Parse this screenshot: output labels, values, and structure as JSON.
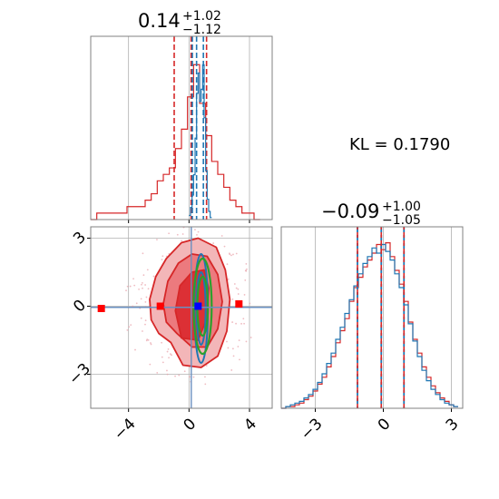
{
  "chart_data": [
    {
      "type": "histogram",
      "panel": "top-left marginal (parameter 1)",
      "title": {
        "median": "0.14",
        "plus": "+1.02",
        "minus": "−1.12"
      },
      "xlim": [
        -6.5,
        5.5
      ],
      "gridlines_x": [
        -4,
        0,
        4
      ],
      "colors": {
        "red": "#d62728",
        "blue": "#1f77b4"
      },
      "series": [
        {
          "color": "red",
          "quantiles": [
            -0.98,
            0.14,
            1.16
          ],
          "bins": [
            [
              -6.3,
              0.0
            ],
            [
              -5.9,
              0.01
            ],
            [
              -5.5,
              0.01
            ],
            [
              -5.1,
              0.01
            ],
            [
              -4.7,
              0.01
            ],
            [
              -4.3,
              0.01
            ],
            [
              -3.9,
              0.02
            ],
            [
              -3.5,
              0.02
            ],
            [
              -3.1,
              0.02
            ],
            [
              -2.7,
              0.03
            ],
            [
              -2.3,
              0.04
            ],
            [
              -1.9,
              0.06
            ],
            [
              -1.5,
              0.07
            ],
            [
              -1.1,
              0.08
            ],
            [
              -0.7,
              0.11
            ],
            [
              -0.3,
              0.14
            ],
            [
              0.1,
              0.19
            ],
            [
              0.5,
              0.24
            ],
            [
              0.9,
              0.18
            ],
            [
              1.3,
              0.13
            ],
            [
              1.7,
              0.09
            ],
            [
              2.1,
              0.07
            ],
            [
              2.5,
              0.05
            ],
            [
              2.9,
              0.03
            ],
            [
              3.3,
              0.02
            ],
            [
              3.7,
              0.01
            ],
            [
              4.1,
              0.01
            ],
            [
              4.5,
              0.0
            ]
          ]
        },
        {
          "color": "blue",
          "quantiles": [
            0.22,
            0.5,
            0.95
          ],
          "bins": [
            [
              0.05,
              0.02
            ],
            [
              0.15,
              0.06
            ],
            [
              0.25,
              0.12
            ],
            [
              0.35,
              0.22
            ],
            [
              0.45,
              0.4
            ],
            [
              0.55,
              0.62
            ],
            [
              0.65,
              0.72
            ],
            [
              0.75,
              0.58
            ],
            [
              0.85,
              0.64
            ],
            [
              0.95,
              0.76
            ],
            [
              1.05,
              0.5
            ],
            [
              1.15,
              0.24
            ],
            [
              1.25,
              0.1
            ],
            [
              1.35,
              0.04
            ],
            [
              1.45,
              0.01
            ]
          ]
        }
      ]
    },
    {
      "type": "scatter",
      "panel": "bottom-left 2D (parameter 1 vs parameter 2)",
      "xlim": [
        -6.5,
        5.5
      ],
      "ylim": [
        -4.5,
        3.5
      ],
      "x_ticks": [
        "−4",
        "0",
        "4"
      ],
      "y_ticks": [
        "−3",
        "0",
        "3"
      ],
      "x_tick_values": [
        -4,
        0,
        4
      ],
      "y_tick_values": [
        -3,
        0,
        3
      ],
      "red_contours": [
        [
          [
            -1.2,
            -1.6
          ],
          [
            -0.4,
            -2.6
          ],
          [
            0.8,
            -2.7
          ],
          [
            1.9,
            -2.2
          ],
          [
            2.5,
            -1.1
          ],
          [
            2.7,
            0.3
          ],
          [
            2.4,
            1.6
          ],
          [
            1.8,
            2.6
          ],
          [
            0.6,
            3.0
          ],
          [
            -0.5,
            2.8
          ],
          [
            -1.5,
            2.1
          ],
          [
            -2.2,
            1.3
          ],
          [
            -2.6,
            0.3
          ],
          [
            -2.5,
            -0.6
          ],
          [
            -2.0,
            -1.2
          ]
        ],
        [
          [
            -0.8,
            -1.2
          ],
          [
            0.2,
            -1.8
          ],
          [
            1.2,
            -1.8
          ],
          [
            1.9,
            -1.0
          ],
          [
            2.2,
            0.2
          ],
          [
            1.9,
            1.4
          ],
          [
            1.2,
            2.2
          ],
          [
            0.2,
            2.3
          ],
          [
            -0.7,
            1.9
          ],
          [
            -1.4,
            1.1
          ],
          [
            -1.7,
            0.1
          ],
          [
            -1.5,
            -0.7
          ]
        ],
        [
          [
            -0.5,
            -1.4
          ],
          [
            0.6,
            -1.5
          ],
          [
            1.2,
            -0.5
          ],
          [
            1.3,
            0.8
          ],
          [
            1.0,
            1.6
          ],
          [
            0.2,
            1.5
          ],
          [
            -0.6,
            0.9
          ],
          [
            -0.9,
            -0.2
          ]
        ]
      ],
      "blue_ellipses": [
        {
          "cx": 0.8,
          "cy": -0.1,
          "rx": 0.45,
          "ry": 2.4
        },
        {
          "cx": 0.8,
          "cy": -0.1,
          "rx": 0.3,
          "ry": 1.6
        }
      ],
      "green_ellipses": [
        {
          "cx": 0.9,
          "cy": 0.0,
          "rx": 0.6,
          "ry": 2.1
        },
        {
          "cx": 0.9,
          "cy": 0.0,
          "rx": 0.35,
          "ry": 1.3
        }
      ],
      "red_squares": [
        [
          -5.8,
          -0.1
        ],
        [
          -1.9,
          0.0
        ],
        [
          3.3,
          0.1
        ]
      ],
      "blue_square": [
        0.6,
        0.0
      ],
      "truth_lines": {
        "x": 0.15,
        "y": -0.05
      }
    },
    {
      "type": "histogram",
      "panel": "bottom-right marginal (parameter 2)",
      "title": {
        "median": "−0.09",
        "plus": "+1.00",
        "minus": "−1.05"
      },
      "xlim": [
        -4.5,
        3.5
      ],
      "x_ticks": [
        "−3",
        "0",
        "3"
      ],
      "x_tick_values": [
        -3,
        0,
        3
      ],
      "quantiles": [
        -1.14,
        -0.09,
        0.91
      ],
      "series": [
        {
          "color": "red",
          "bins": [
            [
              -4.4,
              0.0
            ],
            [
              -4.2,
              0.01
            ],
            [
              -4.0,
              0.01
            ],
            [
              -3.8,
              0.02
            ],
            [
              -3.6,
              0.03
            ],
            [
              -3.4,
              0.05
            ],
            [
              -3.2,
              0.07
            ],
            [
              -3.0,
              0.1
            ],
            [
              -2.8,
              0.14
            ],
            [
              -2.6,
              0.18
            ],
            [
              -2.4,
              0.24
            ],
            [
              -2.2,
              0.3
            ],
            [
              -2.0,
              0.38
            ],
            [
              -1.8,
              0.45
            ],
            [
              -1.6,
              0.52
            ],
            [
              -1.4,
              0.62
            ],
            [
              -1.2,
              0.7
            ],
            [
              -1.0,
              0.76
            ],
            [
              -0.8,
              0.82
            ],
            [
              -0.6,
              0.86
            ],
            [
              -0.4,
              0.9
            ],
            [
              -0.2,
              0.95
            ],
            [
              0.0,
              0.92
            ],
            [
              0.2,
              0.96
            ],
            [
              0.4,
              0.88
            ],
            [
              0.6,
              0.8
            ],
            [
              0.8,
              0.72
            ],
            [
              1.0,
              0.62
            ],
            [
              1.2,
              0.5
            ],
            [
              1.4,
              0.4
            ],
            [
              1.6,
              0.32
            ],
            [
              1.8,
              0.24
            ],
            [
              2.0,
              0.18
            ],
            [
              2.2,
              0.13
            ],
            [
              2.4,
              0.09
            ],
            [
              2.6,
              0.06
            ],
            [
              2.8,
              0.04
            ],
            [
              3.0,
              0.02
            ],
            [
              3.2,
              0.01
            ]
          ]
        },
        {
          "color": "blue",
          "bins": [
            [
              -4.4,
              0.0
            ],
            [
              -4.2,
              0.01
            ],
            [
              -4.0,
              0.02
            ],
            [
              -3.8,
              0.03
            ],
            [
              -3.6,
              0.04
            ],
            [
              -3.4,
              0.06
            ],
            [
              -3.2,
              0.08
            ],
            [
              -3.0,
              0.11
            ],
            [
              -2.8,
              0.15
            ],
            [
              -2.6,
              0.2
            ],
            [
              -2.4,
              0.26
            ],
            [
              -2.2,
              0.32
            ],
            [
              -2.0,
              0.4
            ],
            [
              -1.8,
              0.47
            ],
            [
              -1.6,
              0.55
            ],
            [
              -1.4,
              0.63
            ],
            [
              -1.2,
              0.71
            ],
            [
              -1.0,
              0.78
            ],
            [
              -0.8,
              0.84
            ],
            [
              -0.6,
              0.88
            ],
            [
              -0.4,
              0.93
            ],
            [
              -0.2,
              0.9
            ],
            [
              0.0,
              0.95
            ],
            [
              0.2,
              0.91
            ],
            [
              0.4,
              0.86
            ],
            [
              0.6,
              0.78
            ],
            [
              0.8,
              0.7
            ],
            [
              1.0,
              0.6
            ],
            [
              1.2,
              0.49
            ],
            [
              1.4,
              0.39
            ],
            [
              1.6,
              0.3
            ],
            [
              1.8,
              0.22
            ],
            [
              2.0,
              0.16
            ],
            [
              2.2,
              0.11
            ],
            [
              2.4,
              0.08
            ],
            [
              2.6,
              0.05
            ],
            [
              2.8,
              0.03
            ],
            [
              3.0,
              0.02
            ],
            [
              3.2,
              0.01
            ]
          ]
        }
      ]
    }
  ],
  "annotation": {
    "kl_text": "KL = 0.1790"
  },
  "colors": {
    "red": "#d62728",
    "blue": "#1f77b4",
    "green": "#2ca02c",
    "blue_marker": "#0000ff",
    "red_marker": "#ff0000",
    "grid": "#b0b0b0",
    "frame": "#808080"
  }
}
